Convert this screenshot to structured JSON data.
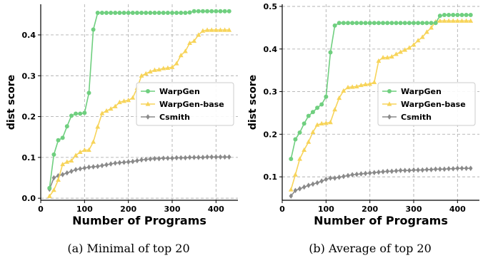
{
  "colors": {
    "warpgen": "#6fcf7f",
    "warpgen_base": "#f7d45a",
    "csmith": "#8a8a8a"
  },
  "chart_data": [
    {
      "type": "line",
      "caption": "(a) Minimal of top 20",
      "xlabel": "Number of Programs",
      "ylabel": "dist score",
      "xlim": [
        0,
        450
      ],
      "ylim": [
        -0.005,
        0.475
      ],
      "xticks": [
        0,
        100,
        200,
        300,
        400
      ],
      "yticks": [
        0.0,
        0.1,
        0.2,
        0.3,
        0.4
      ],
      "ytick_labels": [
        "0.0",
        "0.1",
        "0.2",
        "0.3",
        "0.4"
      ],
      "grid": true,
      "legend": "center-right",
      "x": [
        20,
        30,
        40,
        50,
        60,
        70,
        80,
        90,
        100,
        110,
        120,
        130,
        140,
        150,
        160,
        170,
        180,
        190,
        200,
        210,
        220,
        230,
        240,
        250,
        260,
        270,
        280,
        290,
        300,
        310,
        320,
        330,
        340,
        350,
        360,
        370,
        380,
        390,
        400,
        410,
        420,
        430
      ],
      "series": [
        {
          "name": "WarpGen",
          "marker": "circle",
          "color_key": "warpgen",
          "values": [
            0.025,
            0.107,
            0.142,
            0.148,
            0.176,
            0.202,
            0.207,
            0.207,
            0.209,
            0.258,
            0.413,
            0.454,
            0.454,
            0.454,
            0.454,
            0.454,
            0.454,
            0.454,
            0.454,
            0.454,
            0.454,
            0.454,
            0.454,
            0.454,
            0.454,
            0.454,
            0.454,
            0.454,
            0.454,
            0.454,
            0.454,
            0.454,
            0.455,
            0.458,
            0.458,
            0.458,
            0.458,
            0.458,
            0.458,
            0.458,
            0.458,
            0.458
          ]
        },
        {
          "name": "WarpGen-base",
          "marker": "triangle",
          "color_key": "warpgen_base",
          "values": [
            0.005,
            0.02,
            0.045,
            0.083,
            0.089,
            0.092,
            0.105,
            0.113,
            0.118,
            0.118,
            0.138,
            0.175,
            0.208,
            0.214,
            0.219,
            0.225,
            0.235,
            0.238,
            0.24,
            0.246,
            0.27,
            0.3,
            0.305,
            0.31,
            0.314,
            0.315,
            0.318,
            0.319,
            0.321,
            0.33,
            0.35,
            0.36,
            0.38,
            0.385,
            0.4,
            0.41,
            0.412,
            0.412,
            0.412,
            0.412,
            0.412,
            0.412
          ]
        },
        {
          "name": "Csmith",
          "marker": "diamond",
          "color_key": "csmith",
          "values": [
            0.022,
            0.05,
            0.055,
            0.058,
            0.062,
            0.066,
            0.07,
            0.072,
            0.074,
            0.076,
            0.077,
            0.078,
            0.08,
            0.082,
            0.084,
            0.086,
            0.087,
            0.088,
            0.089,
            0.09,
            0.092,
            0.094,
            0.095,
            0.096,
            0.097,
            0.097,
            0.098,
            0.098,
            0.098,
            0.099,
            0.099,
            0.099,
            0.1,
            0.1,
            0.1,
            0.1,
            0.101,
            0.101,
            0.101,
            0.101,
            0.101,
            0.101
          ]
        }
      ]
    },
    {
      "type": "line",
      "caption": "(b) Average of top 20",
      "xlabel": "Number of Programs",
      "ylabel": "dist score",
      "xlim": [
        0,
        450
      ],
      "ylim": [
        0.045,
        0.505
      ],
      "xticks": [
        0,
        100,
        200,
        300,
        400
      ],
      "yticks": [
        0.1,
        0.2,
        0.3,
        0.4,
        0.5
      ],
      "ytick_labels": [
        "0.1",
        "0.2",
        "0.3",
        "0.4",
        "0.5"
      ],
      "grid": true,
      "legend": "center-right",
      "x": [
        20,
        30,
        40,
        50,
        60,
        70,
        80,
        90,
        100,
        110,
        120,
        130,
        140,
        150,
        160,
        170,
        180,
        190,
        200,
        210,
        220,
        230,
        240,
        250,
        260,
        270,
        280,
        290,
        300,
        310,
        320,
        330,
        340,
        350,
        360,
        370,
        380,
        390,
        400,
        410,
        420,
        430
      ],
      "series": [
        {
          "name": "WarpGen",
          "marker": "circle",
          "color_key": "warpgen",
          "values": [
            0.142,
            0.188,
            0.204,
            0.225,
            0.243,
            0.252,
            0.262,
            0.27,
            0.288,
            0.392,
            0.455,
            0.461,
            0.461,
            0.461,
            0.461,
            0.461,
            0.461,
            0.461,
            0.461,
            0.461,
            0.461,
            0.461,
            0.461,
            0.461,
            0.461,
            0.461,
            0.461,
            0.461,
            0.461,
            0.461,
            0.461,
            0.461,
            0.461,
            0.461,
            0.478,
            0.48,
            0.48,
            0.48,
            0.48,
            0.48,
            0.48,
            0.48
          ]
        },
        {
          "name": "WarpGen-base",
          "marker": "triangle",
          "color_key": "warpgen_base",
          "values": [
            0.07,
            0.105,
            0.142,
            0.163,
            0.182,
            0.205,
            0.222,
            0.225,
            0.226,
            0.228,
            0.258,
            0.285,
            0.302,
            0.31,
            0.311,
            0.312,
            0.315,
            0.317,
            0.318,
            0.322,
            0.372,
            0.38,
            0.38,
            0.382,
            0.388,
            0.393,
            0.398,
            0.403,
            0.41,
            0.42,
            0.428,
            0.44,
            0.45,
            0.464,
            0.466,
            0.466,
            0.466,
            0.466,
            0.466,
            0.466,
            0.466,
            0.466
          ]
        },
        {
          "name": "Csmith",
          "marker": "diamond",
          "color_key": "csmith",
          "values": [
            0.055,
            0.068,
            0.072,
            0.076,
            0.08,
            0.083,
            0.086,
            0.09,
            0.094,
            0.097,
            0.097,
            0.099,
            0.101,
            0.103,
            0.105,
            0.106,
            0.107,
            0.108,
            0.109,
            0.11,
            0.111,
            0.112,
            0.113,
            0.113,
            0.114,
            0.115,
            0.115,
            0.115,
            0.116,
            0.116,
            0.116,
            0.117,
            0.117,
            0.118,
            0.118,
            0.118,
            0.119,
            0.119,
            0.12,
            0.12,
            0.12,
            0.12
          ]
        }
      ]
    }
  ]
}
